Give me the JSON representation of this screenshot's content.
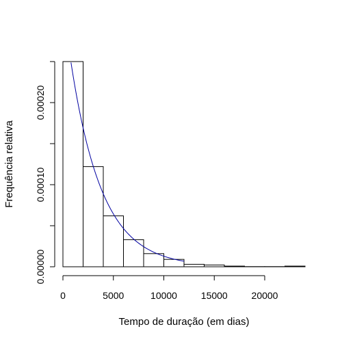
{
  "chart_data": {
    "type": "bar",
    "histogram": true,
    "xlabel": "Tempo de duração (em dias)",
    "ylabel": "Frequência relativa",
    "xlim": [
      0,
      24000
    ],
    "ylim": [
      0,
      0.00025
    ],
    "xticks": [
      {
        "value": 0,
        "label": "0"
      },
      {
        "value": 5000,
        "label": "5000"
      },
      {
        "value": 10000,
        "label": "10000"
      },
      {
        "value": 15000,
        "label": "15000"
      },
      {
        "value": 20000,
        "label": "20000"
      }
    ],
    "yticks": [
      {
        "value": 0,
        "label": "0.00000"
      },
      {
        "value": 5e-05,
        "label": ""
      },
      {
        "value": 0.0001,
        "label": "0.00010"
      },
      {
        "value": 0.00015,
        "label": ""
      },
      {
        "value": 0.0002,
        "label": "0.00020"
      },
      {
        "value": 0.00025,
        "label": ""
      }
    ],
    "bins": [
      {
        "x0": 0,
        "x1": 2000,
        "density": 0.00025
      },
      {
        "x0": 2000,
        "x1": 4000,
        "density": 0.000122
      },
      {
        "x0": 4000,
        "x1": 6000,
        "density": 6.2e-05
      },
      {
        "x0": 6000,
        "x1": 8000,
        "density": 3.3e-05
      },
      {
        "x0": 8000,
        "x1": 10000,
        "density": 1.6e-05
      },
      {
        "x0": 10000,
        "x1": 12000,
        "density": 9e-06
      },
      {
        "x0": 12000,
        "x1": 14000,
        "density": 3e-06
      },
      {
        "x0": 14000,
        "x1": 16000,
        "density": 2.2e-06
      },
      {
        "x0": 16000,
        "x1": 18000,
        "density": 8e-07
      },
      {
        "x0": 18000,
        "x1": 20000,
        "density": 2e-07
      },
      {
        "x0": 20000,
        "x1": 22000,
        "density": 2e-07
      },
      {
        "x0": 22000,
        "x1": 24000,
        "density": 8e-07
      }
    ],
    "curve": {
      "type": "exponential-density",
      "rate": 0.000322,
      "x_range": [
        800,
        12000
      ],
      "color": "#0000a0"
    },
    "grid": false
  }
}
